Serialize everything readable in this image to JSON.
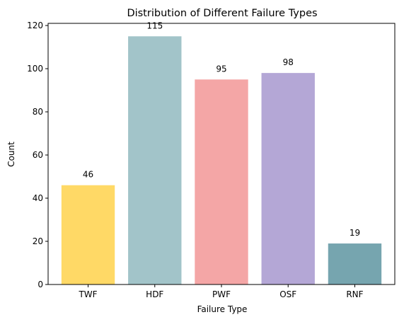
{
  "chart_data": {
    "type": "bar",
    "title": "Distribution of Different Failure Types",
    "xlabel": "Failure Type",
    "ylabel": "Count",
    "categories": [
      "TWF",
      "HDF",
      "PWF",
      "OSF",
      "RNF"
    ],
    "values": [
      46,
      115,
      95,
      98,
      19
    ],
    "colors": [
      "#ffd966",
      "#a2c4c9",
      "#f4a6a6",
      "#b4a7d6",
      "#76a5af"
    ],
    "data_labels": [
      "46",
      "115",
      "95",
      "98",
      "19"
    ],
    "ylim": [
      0,
      121
    ],
    "yticks": [
      0,
      20,
      40,
      60,
      80,
      100,
      120
    ],
    "grid": false,
    "legend": "none"
  }
}
